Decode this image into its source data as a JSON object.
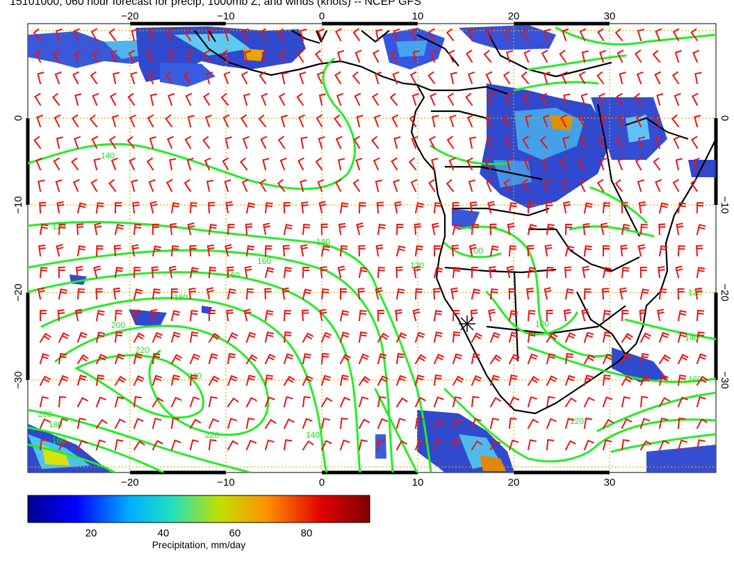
{
  "title": "15101000, 060 hour forecast for precip, 1000mb Z, and winds (knots) -- NCEP GFS",
  "map": {
    "lon_ticks": [
      "−20",
      "−10",
      "0",
      "10",
      "20",
      "30"
    ],
    "lat_ticks": [
      "0",
      "−10",
      "−20",
      "−30"
    ],
    "contour_labels": [
      "140",
      "120",
      "140",
      "160",
      "160",
      "180",
      "200",
      "220",
      "240",
      "220",
      "200",
      "180",
      "160",
      "140",
      "120",
      "100",
      "120",
      "140",
      "160",
      "100",
      "120"
    ],
    "colors": {
      "contour": "#22ee22",
      "barb": "#ee1111",
      "coast": "#000000",
      "grid": "#d4b000"
    }
  },
  "colorbar": {
    "ticks": [
      "20",
      "40",
      "60",
      "80"
    ],
    "label": "Precipitation, mm/day",
    "stops": [
      "#00008f",
      "#0000ff",
      "#00b0ff",
      "#20e0c0",
      "#c0e000",
      "#ff9000",
      "#e00000",
      "#7f0000"
    ]
  }
}
